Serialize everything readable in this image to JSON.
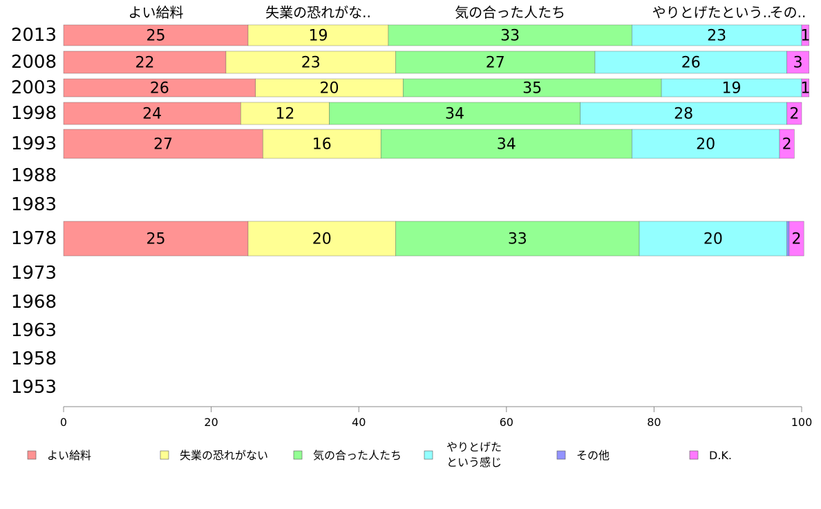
{
  "chart_data": {
    "type": "bar",
    "orientation": "horizontal",
    "stacked": true,
    "categories": [
      "2013",
      "2008",
      "2003",
      "1998",
      "1993",
      "1988",
      "1983",
      "1978",
      "1973",
      "1968",
      "1963",
      "1958",
      "1953"
    ],
    "series": [
      {
        "name": "よい給料",
        "color": "#ff9393",
        "values": [
          25,
          22,
          26,
          24,
          27,
          null,
          null,
          25,
          null,
          null,
          null,
          null,
          null
        ]
      },
      {
        "name": "失業の恐れがない",
        "color": "#ffff93",
        "values": [
          19,
          23,
          20,
          12,
          16,
          null,
          null,
          20,
          null,
          null,
          null,
          null,
          null
        ]
      },
      {
        "name": "気の合った人たち",
        "color": "#93ff93",
        "values": [
          33,
          27,
          35,
          34,
          34,
          null,
          null,
          33,
          null,
          null,
          null,
          null,
          null
        ]
      },
      {
        "name": "やりとげたという感じ",
        "color": "#93ffff",
        "values": [
          23,
          26,
          19,
          28,
          20,
          null,
          null,
          20,
          null,
          null,
          null,
          null,
          null
        ]
      },
      {
        "name": "その他",
        "color": "#9393ff",
        "values": [
          0,
          0,
          0,
          0,
          0,
          null,
          null,
          0.3,
          null,
          null,
          null,
          null,
          null
        ]
      },
      {
        "name": "D.K.",
        "color": "#ff79ff",
        "values": [
          1,
          3,
          1,
          2,
          2,
          null,
          null,
          2,
          null,
          null,
          null,
          null,
          null
        ]
      }
    ],
    "data_labels": [
      [
        "25",
        "19",
        "33",
        "23",
        "",
        "1"
      ],
      [
        "22",
        "23",
        "27",
        "26",
        "",
        "3"
      ],
      [
        "26",
        "20",
        "35",
        "19",
        "",
        "1"
      ],
      [
        "24",
        "12",
        "34",
        "28",
        "",
        "2"
      ],
      [
        "27",
        "16",
        "34",
        "20",
        "",
        "2"
      ],
      [],
      [],
      [
        "25",
        "20",
        "33",
        "20",
        "",
        "2"
      ],
      [],
      [],
      [],
      [],
      []
    ],
    "top_labels": [
      "よい給料",
      "失業の恐れがな..",
      "気の合った人たち",
      "やりとげたという..",
      "その.."
    ],
    "x_ticks": [
      "0",
      "20",
      "40",
      "60",
      "80",
      "100"
    ],
    "xlim": [
      0,
      100
    ],
    "grid": false,
    "legend_position": "bottom",
    "legend_labels": [
      [
        "よい給料"
      ],
      [
        "失業の恐れがない"
      ],
      [
        "気の合った人たち"
      ],
      [
        "やりとげた",
        "という感じ"
      ],
      [
        "その他"
      ],
      [
        "D.K."
      ]
    ]
  }
}
